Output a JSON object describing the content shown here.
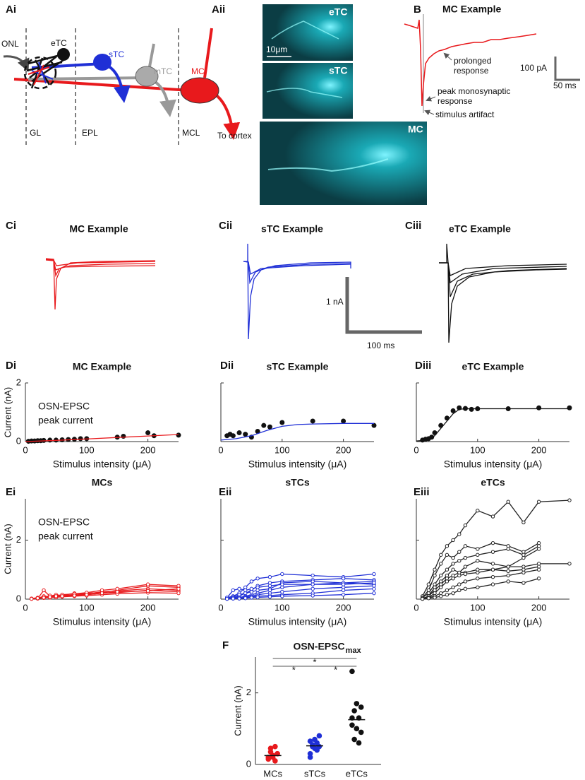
{
  "diagram": {
    "label": "Ai",
    "texts": {
      "onl": "ONL",
      "etc": "eTC",
      "stc": "sTC",
      "mtc": "mTC",
      "mc": "MC",
      "gl": "GL",
      "epl": "EPL",
      "mcl": "MCL",
      "cortex": "To cortex"
    }
  },
  "micrographs": {
    "label": "Aii",
    "images": [
      "eTC",
      "sTC",
      "MC"
    ],
    "scale": "10μm"
  },
  "trace_example": {
    "label": "B",
    "title": "MC Example",
    "annotations": [
      [
        "prolonged",
        "response"
      ],
      [
        "peak monosynaptic",
        "response"
      ],
      [
        "stimulus artifact"
      ]
    ],
    "scale_y": "100 pA",
    "scale_x": "50 ms"
  },
  "traces": {
    "panels": [
      {
        "label": "Ci",
        "title": "MC Example"
      },
      {
        "label": "Cii",
        "title": "sTC Example"
      },
      {
        "label": "Ciii",
        "title": "eTC Example"
      }
    ],
    "scale_y": "1 nA",
    "scale_x": "100 ms"
  },
  "chart_data": [
    {
      "type": "scatter",
      "panel": "Di",
      "title": "MC Example",
      "xlabel": "Stimulus intensity (μA)",
      "ylabel": "Current (nA)",
      "annotation": [
        "OSN-EPSC",
        "peak current"
      ],
      "x": [
        5,
        10,
        15,
        20,
        25,
        30,
        40,
        50,
        60,
        70,
        80,
        90,
        100,
        150,
        160,
        200,
        210,
        250
      ],
      "values": [
        0.01,
        0.02,
        0.02,
        0.03,
        0.03,
        0.04,
        0.05,
        0.05,
        0.06,
        0.07,
        0.08,
        0.1,
        0.1,
        0.15,
        0.18,
        0.3,
        0.2,
        0.22
      ],
      "color": "#111111",
      "fit": {
        "color": "#e8191c",
        "x": [
          0,
          50,
          100,
          150,
          200,
          250
        ],
        "values": [
          0.0,
          0.04,
          0.09,
          0.14,
          0.19,
          0.24
        ]
      },
      "xlim": [
        0,
        250
      ],
      "ylim": [
        0,
        2
      ],
      "xticks": [
        0,
        100,
        200
      ],
      "yticks": [
        0,
        2
      ],
      "show_ytick_labels": true
    },
    {
      "type": "scatter",
      "panel": "Dii",
      "title": "sTC Example",
      "xlabel": "Stimulus intensity (μA)",
      "x": [
        10,
        15,
        20,
        30,
        40,
        50,
        60,
        70,
        80,
        100,
        150,
        200,
        250
      ],
      "values": [
        0.2,
        0.25,
        0.2,
        0.3,
        0.25,
        0.15,
        0.35,
        0.55,
        0.5,
        0.65,
        0.7,
        0.7,
        0.55
      ],
      "color": "#111111",
      "fit": {
        "color": "#1f2fd6",
        "x": [
          0,
          25,
          50,
          75,
          100,
          125,
          150,
          200,
          250
        ],
        "values": [
          0.05,
          0.1,
          0.2,
          0.38,
          0.52,
          0.58,
          0.6,
          0.62,
          0.62
        ]
      },
      "xlim": [
        0,
        250
      ],
      "ylim": [
        0,
        2
      ],
      "xticks": [
        0,
        100,
        200
      ],
      "yticks": [
        0,
        2
      ],
      "show_ytick_labels": false
    },
    {
      "type": "scatter",
      "panel": "Diii",
      "title": "eTC Example",
      "xlabel": "Stimulus intensity (μA)",
      "x": [
        10,
        15,
        20,
        25,
        30,
        40,
        50,
        60,
        70,
        80,
        90,
        100,
        150,
        200,
        250
      ],
      "values": [
        0.05,
        0.08,
        0.1,
        0.15,
        0.3,
        0.55,
        0.8,
        1.05,
        1.15,
        1.13,
        1.1,
        1.12,
        1.12,
        1.15,
        1.15
      ],
      "color": "#111111",
      "fit": {
        "color": "#111111",
        "x": [
          0,
          20,
          30,
          40,
          50,
          60,
          70,
          80,
          250
        ],
        "values": [
          0.02,
          0.05,
          0.2,
          0.45,
          0.7,
          0.95,
          1.1,
          1.12,
          1.12
        ]
      },
      "xlim": [
        0,
        250
      ],
      "ylim": [
        0,
        2
      ],
      "xticks": [
        0,
        100,
        200
      ],
      "yticks": [
        0,
        2
      ],
      "show_ytick_labels": false
    },
    {
      "type": "line",
      "panel": "Ei",
      "title": "MCs",
      "xlabel": "Stimulus intensity (μA)",
      "ylabel": "Current (nA)",
      "annotation": [
        "OSN-EPSC",
        "peak current"
      ],
      "color": "#e8191c",
      "x": [
        10,
        20,
        30,
        40,
        50,
        60,
        80,
        100,
        125,
        150,
        200,
        250
      ],
      "series": [
        {
          "values": [
            0.02,
            0.03,
            0.1,
            0.08,
            0.12,
            0.1,
            0.15,
            0.2,
            0.22,
            0.3,
            0.45,
            0.4
          ]
        },
        {
          "values": [
            0.01,
            0.02,
            0.3,
            0.1,
            0.08,
            0.15,
            0.12,
            0.18,
            0.25,
            0.28,
            0.35,
            0.3
          ]
        },
        {
          "values": [
            0.02,
            0.05,
            0.05,
            0.1,
            0.15,
            0.12,
            0.2,
            0.15,
            0.2,
            0.22,
            0.3,
            0.25
          ]
        },
        {
          "values": [
            0.01,
            0.02,
            0.04,
            0.05,
            0.06,
            0.08,
            0.1,
            0.12,
            0.15,
            0.18,
            0.22,
            0.2
          ]
        },
        {
          "values": [
            0.02,
            0.04,
            0.06,
            0.12,
            0.1,
            0.15,
            0.18,
            0.22,
            0.3,
            0.35,
            0.5,
            0.45
          ]
        },
        {
          "values": [
            0.01,
            0.03,
            0.05,
            0.07,
            0.1,
            0.1,
            0.12,
            0.15,
            0.2,
            0.25,
            0.28,
            0.35
          ]
        }
      ],
      "xlim": [
        0,
        250
      ],
      "ylim": [
        0,
        3.4
      ],
      "xticks": [
        0,
        100,
        200
      ],
      "yticks": [
        0,
        2
      ],
      "show_ytick_labels": true
    },
    {
      "type": "line",
      "panel": "Eii",
      "title": "sTCs",
      "xlabel": "Stimulus intensity (μA)",
      "color": "#1f2fd6",
      "x": [
        10,
        20,
        30,
        40,
        50,
        60,
        80,
        100,
        150,
        200,
        250
      ],
      "series": [
        {
          "values": [
            0.05,
            0.1,
            0.2,
            0.4,
            0.6,
            0.7,
            0.75,
            0.85,
            0.8,
            0.75,
            0.85
          ]
        },
        {
          "values": [
            0.02,
            0.05,
            0.1,
            0.2,
            0.3,
            0.45,
            0.55,
            0.6,
            0.65,
            0.7,
            0.65
          ]
        },
        {
          "values": [
            0.05,
            0.08,
            0.15,
            0.2,
            0.25,
            0.3,
            0.35,
            0.55,
            0.6,
            0.55,
            0.5
          ]
        },
        {
          "values": [
            0.01,
            0.03,
            0.05,
            0.1,
            0.15,
            0.2,
            0.3,
            0.4,
            0.5,
            0.55,
            0.6
          ]
        },
        {
          "values": [
            0.02,
            0.04,
            0.06,
            0.08,
            0.1,
            0.15,
            0.2,
            0.25,
            0.35,
            0.4,
            0.45
          ]
        },
        {
          "values": [
            0.01,
            0.02,
            0.03,
            0.05,
            0.07,
            0.1,
            0.12,
            0.15,
            0.2,
            0.3,
            0.35
          ]
        },
        {
          "values": [
            0.05,
            0.3,
            0.35,
            0.3,
            0.35,
            0.4,
            0.45,
            0.5,
            0.5,
            0.5,
            0.55
          ]
        },
        {
          "values": [
            0.01,
            0.02,
            0.02,
            0.03,
            0.05,
            0.06,
            0.08,
            0.1,
            0.12,
            0.15,
            0.2
          ]
        }
      ],
      "xlim": [
        0,
        250
      ],
      "ylim": [
        0,
        3.4
      ],
      "xticks": [
        0,
        100,
        200
      ],
      "yticks": [
        0,
        2
      ],
      "show_ytick_labels": false
    },
    {
      "type": "line",
      "panel": "Eiii",
      "title": "eTCs",
      "xlabel": "Stimulus intensity (μA)",
      "color": "#222222",
      "x": [
        10,
        20,
        30,
        40,
        50,
        60,
        70,
        80,
        100,
        125,
        150,
        175,
        200,
        250
      ],
      "series": [
        {
          "values": [
            0.1,
            0.5,
            1.0,
            1.5,
            1.8,
            2.0,
            2.2,
            2.5,
            3.0,
            2.8,
            3.3,
            2.6,
            3.3,
            3.35
          ]
        },
        {
          "values": [
            0.05,
            0.3,
            0.8,
            1.2,
            1.5,
            1.4,
            1.6,
            1.8,
            1.7,
            1.9,
            1.8,
            1.6,
            1.9,
            null
          ]
        },
        {
          "values": [
            0.05,
            0.2,
            0.5,
            0.8,
            1.0,
            1.2,
            1.3,
            1.4,
            1.5,
            1.6,
            1.7,
            1.5,
            1.8,
            null
          ]
        },
        {
          "values": [
            0.02,
            0.1,
            0.4,
            0.6,
            0.8,
            1.0,
            0.9,
            1.1,
            1.3,
            1.2,
            1.1,
            1.4,
            1.7,
            null
          ]
        },
        {
          "values": [
            0.02,
            0.1,
            0.3,
            0.5,
            0.7,
            0.8,
            0.9,
            0.9,
            1.0,
            1.0,
            1.1,
            1.1,
            1.2,
            1.2
          ]
        },
        {
          "values": [
            0.01,
            0.05,
            0.2,
            0.4,
            0.6,
            0.7,
            0.8,
            0.85,
            0.9,
            1.0,
            0.95,
            1.0,
            1.1,
            null
          ]
        },
        {
          "values": [
            0.01,
            0.05,
            0.1,
            0.2,
            0.3,
            0.4,
            0.5,
            0.6,
            0.7,
            0.75,
            0.8,
            0.9,
            1.0,
            null
          ]
        },
        {
          "values": [
            0.01,
            0.03,
            0.05,
            0.1,
            0.15,
            0.2,
            0.3,
            0.35,
            0.4,
            0.5,
            0.6,
            0.55,
            0.7,
            null
          ]
        }
      ],
      "xlim": [
        0,
        250
      ],
      "ylim": [
        0,
        3.4
      ],
      "xticks": [
        0,
        100,
        200
      ],
      "yticks": [
        0,
        2
      ],
      "show_ytick_labels": false
    },
    {
      "type": "strip",
      "panel": "F",
      "title": "OSN-EPSC",
      "title_subscript": "max",
      "ylabel": "Current (nA)",
      "categories": [
        "MCs",
        "sTCs",
        "eTCs"
      ],
      "colors": [
        "#e8191c",
        "#1f2fd6",
        "#111111"
      ],
      "points": [
        [
          0.2,
          0.25,
          0.3,
          0.35,
          0.5,
          0.15,
          0.2,
          0.3,
          0.45,
          0.1
        ],
        [
          0.3,
          0.45,
          0.5,
          0.55,
          0.6,
          0.65,
          0.7,
          0.8,
          0.5,
          0.4,
          0.2
        ],
        [
          2.6,
          1.7,
          1.6,
          1.5,
          1.3,
          1.1,
          1.0,
          0.9,
          0.7,
          0.6,
          1.3
        ]
      ],
      "means": [
        0.25,
        0.52,
        1.25
      ],
      "significance": [
        "*",
        "*",
        "*"
      ],
      "ylim": [
        0,
        3
      ],
      "yticks": [
        0,
        2
      ],
      "show_ytick_labels": true
    }
  ]
}
